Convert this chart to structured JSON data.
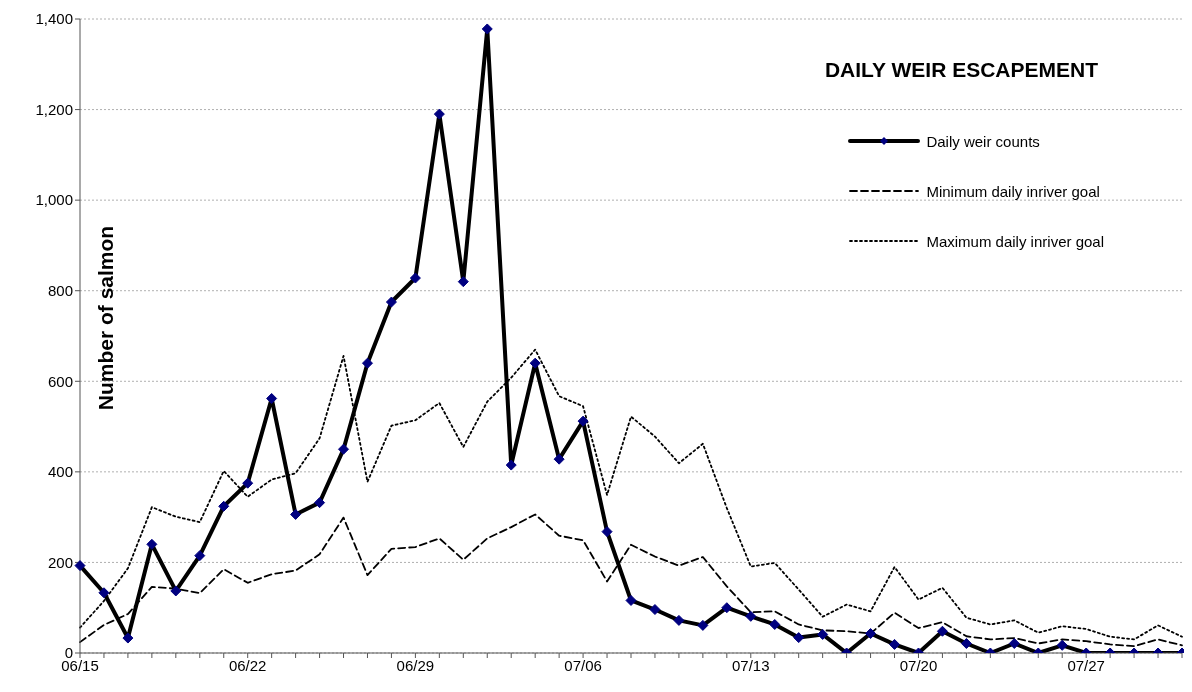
{
  "chart_data": {
    "type": "line",
    "title": "DAILY WEIR ESCAPEMENT",
    "ylabel": "Number of salmon",
    "categories": [
      "06/15",
      null,
      null,
      null,
      null,
      null,
      null,
      "06/22",
      null,
      null,
      null,
      null,
      null,
      null,
      "06/29",
      null,
      null,
      null,
      null,
      null,
      null,
      "07/06",
      null,
      null,
      null,
      null,
      null,
      null,
      "07/13",
      null,
      null,
      null,
      null,
      null,
      null,
      "07/20",
      null,
      null,
      null,
      null,
      null,
      null,
      "07/27",
      null,
      null,
      null,
      null
    ],
    "series": [
      {
        "name": "Daily weir counts",
        "color": "#000000",
        "marker": "diamond",
        "line_style": "solid",
        "values": [
          193,
          133,
          33,
          240,
          137,
          215,
          324,
          375,
          562,
          306,
          332,
          450,
          640,
          775,
          828,
          1190,
          820,
          1378,
          415,
          640,
          428,
          512,
          268,
          116,
          96,
          72,
          61,
          100,
          81,
          63,
          34,
          41,
          0,
          43,
          19,
          0,
          48,
          21,
          0,
          21,
          0,
          17,
          0,
          0,
          0,
          0,
          0
        ]
      },
      {
        "name": "Minimum daily inriver goal",
        "color": "#000000",
        "marker": "none",
        "line_style": "dashed",
        "values": [
          24,
          62,
          86,
          146,
          142,
          132,
          185,
          155,
          174,
          182,
          218,
          299,
          172,
          230,
          234,
          253,
          206,
          253,
          278,
          306,
          259,
          249,
          158,
          239,
          213,
          193,
          212,
          147,
          90,
          92,
          63,
          50,
          48,
          43,
          89,
          55,
          68,
          37,
          30,
          33,
          21,
          30,
          26,
          19,
          15,
          30,
          17
        ]
      },
      {
        "name": "Maximum daily inriver goal",
        "color": "#000000",
        "marker": "none",
        "line_style": "dotted",
        "values": [
          56,
          115,
          187,
          322,
          301,
          289,
          402,
          345,
          383,
          397,
          474,
          656,
          378,
          502,
          514,
          552,
          455,
          555,
          608,
          670,
          567,
          545,
          349,
          522,
          478,
          419,
          462,
          320,
          191,
          199,
          140,
          80,
          107,
          92,
          190,
          118,
          144,
          78,
          63,
          72,
          45,
          59,
          53,
          36,
          30,
          61,
          36
        ]
      }
    ],
    "ylim": [
      0,
      1400
    ],
    "yticks": [
      0,
      200,
      400,
      600,
      800,
      {
        "value": 1000,
        "label": "1,000"
      },
      {
        "value": 1200,
        "label": "1,200"
      },
      {
        "value": 1400,
        "label": "1,400"
      }
    ],
    "grid": "y",
    "legend": "top right"
  }
}
